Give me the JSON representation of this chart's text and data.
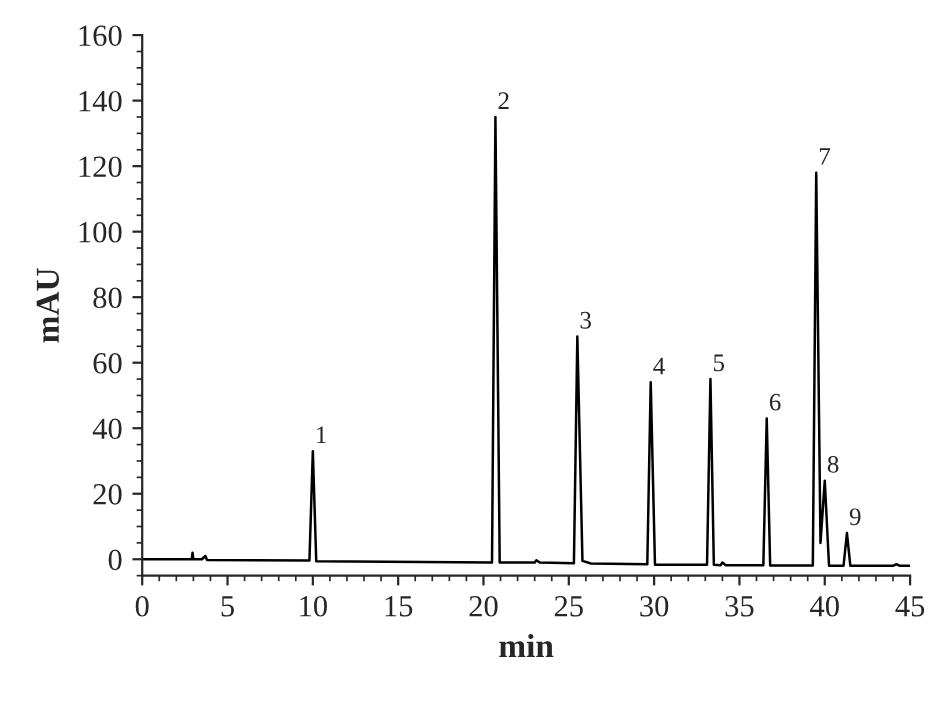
{
  "chart_data": {
    "type": "line",
    "xlabel": "min",
    "ylabel": "mAU",
    "xlim": [
      0,
      45
    ],
    "xticks": [
      0,
      5,
      10,
      15,
      20,
      25,
      30,
      35,
      40,
      45
    ],
    "ylim": [
      -5,
      160
    ],
    "yticks": [
      0,
      20,
      40,
      60,
      80,
      100,
      120,
      140,
      160
    ],
    "grid": false,
    "legend": false,
    "marker": "none",
    "line_style": "solid",
    "series": [
      {
        "color": "#000000",
        "x": [
          0,
          2.9,
          2.95,
          3.0,
          3.5,
          3.7,
          3.8,
          9.8,
          10.0,
          10.2,
          20.5,
          20.7,
          20.95,
          23.0,
          23.1,
          23.3,
          25.3,
          25.5,
          25.8,
          26.3,
          29.6,
          29.8,
          30.05,
          33.1,
          33.3,
          33.5,
          33.9,
          34.0,
          34.2,
          36.4,
          36.6,
          36.8,
          39.3,
          39.5,
          39.75,
          40.0,
          40.25,
          41.1,
          41.3,
          41.5,
          44.0,
          44.2,
          44.4,
          45
        ],
        "values": [
          0,
          0,
          2,
          0,
          0,
          1,
          -0.2,
          -0.4,
          33,
          -0.6,
          -1,
          135,
          -1,
          -1,
          -0.3,
          -1,
          -1.2,
          68,
          -0.5,
          -1.3,
          -1.5,
          54,
          -1.7,
          -1.7,
          55,
          -1.7,
          -1.8,
          -1,
          -1.8,
          -1.8,
          43,
          -1.9,
          -1.9,
          118,
          5,
          24,
          -2,
          -2,
          8,
          -2,
          -2,
          -1.5,
          -2,
          -2
        ]
      }
    ],
    "annotations": [
      {
        "text": "1",
        "x": 10.0,
        "y": 33
      },
      {
        "text": "2",
        "x": 20.7,
        "y": 135
      },
      {
        "text": "3",
        "x": 25.5,
        "y": 68
      },
      {
        "text": "4",
        "x": 29.8,
        "y": 54
      },
      {
        "text": "5",
        "x": 33.3,
        "y": 55
      },
      {
        "text": "6",
        "x": 36.6,
        "y": 43
      },
      {
        "text": "7",
        "x": 39.5,
        "y": 118
      },
      {
        "text": "8",
        "x": 40.0,
        "y": 24
      },
      {
        "text": "9",
        "x": 41.3,
        "y": 8
      }
    ]
  }
}
